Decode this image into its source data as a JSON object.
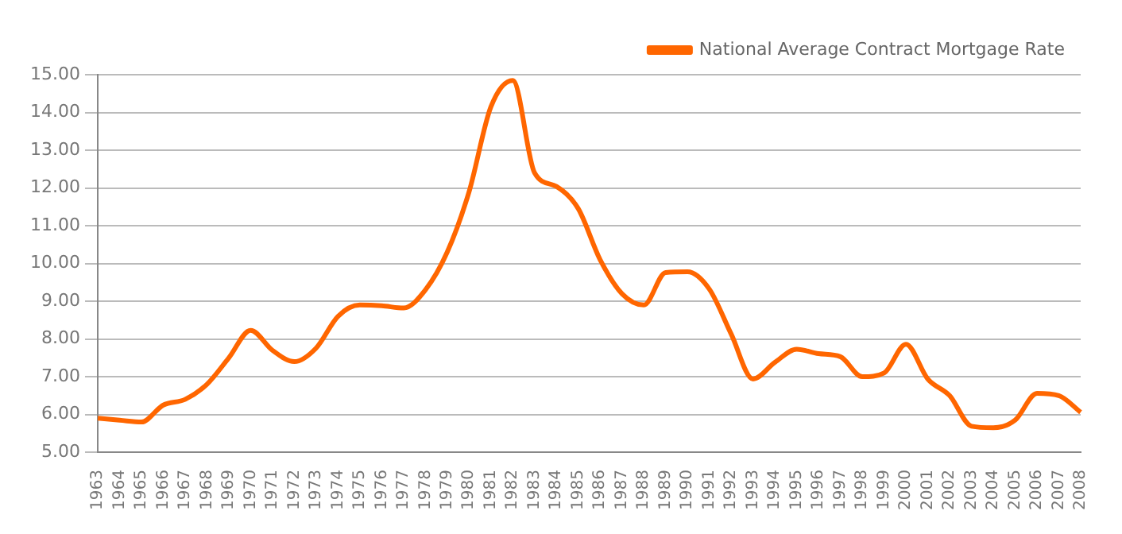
{
  "chart_data": {
    "type": "line",
    "categories": [
      "1963",
      "1964",
      "1965",
      "1966",
      "1967",
      "1968",
      "1969",
      "1970",
      "1971",
      "1972",
      "1973",
      "1974",
      "1975",
      "1976",
      "1977",
      "1978",
      "1979",
      "1980",
      "1981",
      "1982",
      "1983",
      "1984",
      "1985",
      "1986",
      "1987",
      "1988",
      "1989",
      "1990",
      "1991",
      "1992",
      "1993",
      "1994",
      "1995",
      "1996",
      "1997",
      "1998",
      "1999",
      "2000",
      "2001",
      "2002",
      "2003",
      "2004",
      "2005",
      "2006",
      "2007",
      "2008"
    ],
    "series": [
      {
        "name": "National Average Contract Mortgage Rate",
        "color": "#ff6600",
        "values": [
          5.9,
          5.85,
          5.8,
          6.25,
          6.4,
          6.8,
          7.5,
          8.23,
          7.7,
          7.4,
          7.76,
          8.6,
          8.9,
          8.88,
          8.82,
          9.3,
          10.3,
          11.9,
          14.15,
          14.85,
          12.4,
          12.04,
          11.45,
          10.1,
          9.2,
          8.9,
          9.76,
          9.78,
          9.32,
          8.13,
          6.94,
          7.38,
          7.73,
          7.61,
          7.53,
          7.0,
          7.1,
          7.86,
          6.94,
          6.5,
          5.69,
          5.65,
          5.85,
          6.56,
          6.5,
          6.06
        ]
      }
    ],
    "ylim": [
      5,
      15
    ],
    "yticks": [
      {
        "value": 5,
        "label": "5.00"
      },
      {
        "value": 6,
        "label": "6.00"
      },
      {
        "value": 7,
        "label": "7.00"
      },
      {
        "value": 8,
        "label": "8.00"
      },
      {
        "value": 9,
        "label": "9.00"
      },
      {
        "value": 10,
        "label": "10.00"
      },
      {
        "value": 11,
        "label": "11.00"
      },
      {
        "value": 12,
        "label": "12.00"
      },
      {
        "value": 13,
        "label": "13.00"
      },
      {
        "value": 14,
        "label": "14.00"
      },
      {
        "value": 15,
        "label": "15.00"
      }
    ],
    "grid": "y",
    "legend": "top right",
    "marker": "none",
    "line_style": "solid"
  }
}
